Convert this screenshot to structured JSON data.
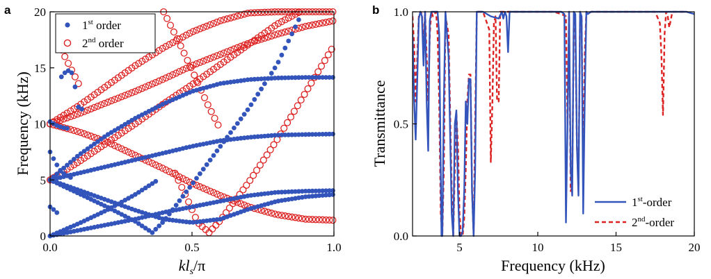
{
  "chart_data": [
    {
      "panel": "a",
      "type": "scatter",
      "xlabel_main": "kl",
      "xlabel_sub": "s",
      "xlabel_tail": "/π",
      "ylabel": "Frequency (kHz)",
      "xlim": [
        0,
        1
      ],
      "ylim": [
        0,
        20
      ],
      "xticks": [
        "0.0",
        "0.5",
        "1.0"
      ],
      "xtick_values": [
        0,
        0.5,
        1
      ],
      "yticks": [
        "0",
        "5",
        "10",
        "15",
        "20"
      ],
      "ytick_values": [
        0,
        5,
        10,
        15,
        20
      ],
      "legend": [
        {
          "pre": "1",
          "sup": "st",
          "post": " order",
          "marker": "filled-circle",
          "color": "#3355bb"
        },
        {
          "pre": "2",
          "sup": "nd",
          "post": " order",
          "marker": "open-circle",
          "color": "#dd2222"
        }
      ],
      "legend_position": "top-left",
      "branches": [
        {
          "ka": [
            0,
            0.05,
            0.1,
            0.2,
            0.3,
            0.4,
            0.5,
            0.6,
            0.7,
            0.8,
            0.9,
            1.0
          ],
          "f": [
            5,
            6.1,
            7.2,
            9.0,
            10.5,
            11.8,
            12.9,
            13.6,
            13.95,
            14.1,
            14.15,
            14.15
          ]
        },
        {
          "ka": [
            0,
            0.1,
            0.2,
            0.3,
            0.4,
            0.5,
            0.6,
            0.7,
            0.8,
            0.9,
            1.0
          ],
          "f": [
            5,
            5.6,
            6.2,
            6.8,
            7.4,
            8.0,
            8.5,
            8.8,
            9.0,
            9.05,
            9.1
          ]
        },
        {
          "ka": [
            0,
            0.1,
            0.2,
            0.3,
            0.4,
            0.5,
            0.6,
            0.7,
            0.8,
            0.9,
            1.0
          ],
          "f": [
            5,
            4.1,
            3.2,
            2.3,
            1.5,
            1.2,
            1.5,
            2.4,
            3.1,
            3.5,
            3.7
          ]
        },
        {
          "ka": [
            0,
            0.1,
            0.2,
            0.3,
            0.4,
            0.5,
            0.6,
            0.7,
            0.8,
            0.9,
            1.0
          ],
          "f": [
            0,
            0.5,
            1.0,
            1.5,
            2.1,
            2.6,
            3.1,
            3.6,
            3.9,
            4.0,
            4.05
          ]
        },
        {
          "ka": [
            0,
            0.1,
            0.2,
            0.3,
            0.36,
            0.4,
            0.5,
            0.6,
            0.7,
            0.8,
            0.88
          ],
          "f": [
            5,
            3.8,
            2.6,
            1.3,
            0.3,
            1.3,
            4.6,
            8.0,
            11.4,
            15.3,
            19.5
          ]
        },
        {
          "ka": [
            0,
            0.1,
            0.2,
            0.3,
            0.38
          ],
          "f": [
            0,
            1.1,
            2.3,
            3.7,
            5.0
          ]
        },
        {
          "ka": [
            0,
            0.02,
            0.04,
            0.08
          ],
          "f": [
            7.5,
            6.5,
            5.7,
            5.1
          ]
        },
        {
          "ka": [
            0,
            0.01,
            0.02,
            0.03
          ],
          "f": [
            2.6,
            2.4,
            2.2,
            1.9
          ]
        },
        {
          "ka": [
            0.04,
            0.06,
            0.08,
            0.1,
            0.12
          ],
          "f": [
            14.2,
            14.8,
            14.5,
            11.5,
            11.2
          ]
        },
        {
          "ka": [
            0,
            0.02,
            0.04,
            0.06
          ],
          "f": [
            10.2,
            9.9,
            9.7,
            9.6
          ]
        }
      ],
      "second_order_branches": [
        {
          "ka": [
            0,
            0.05,
            0.1,
            0.2,
            0.3,
            0.4,
            0.5,
            0.6,
            0.7,
            0.8,
            0.88
          ],
          "f": [
            5,
            5.8,
            6.6,
            8.3,
            10.0,
            11.8,
            13.5,
            15.3,
            17.1,
            18.9,
            20
          ]
        },
        {
          "ka": [
            0,
            0.1,
            0.2,
            0.3,
            0.4,
            0.5,
            0.6,
            0.7,
            0.8,
            0.9,
            1.0
          ],
          "f": [
            10,
            10.9,
            11.9,
            12.9,
            14.0,
            15.2,
            16.2,
            17.2,
            18.0,
            18.7,
            19.2
          ]
        },
        {
          "ka": [
            0,
            0.1,
            0.2,
            0.3,
            0.4,
            0.5,
            0.6,
            0.7,
            0.8,
            0.9,
            1.0
          ],
          "f": [
            10,
            11.6,
            13.4,
            15.2,
            16.8,
            18.2,
            19.2,
            19.9,
            20,
            20,
            20
          ]
        },
        {
          "ka": [
            0,
            0.1,
            0.2,
            0.3,
            0.4,
            0.5,
            0.6,
            0.7,
            0.8,
            0.9,
            1.0
          ],
          "f": [
            10,
            9.3,
            8.4,
            7.2,
            6.0,
            4.7,
            3.6,
            2.6,
            1.9,
            1.5,
            1.4
          ]
        },
        {
          "ka": [
            0.44,
            0.48,
            0.52,
            0.56,
            0.6,
            0.7,
            0.8,
            0.9,
            1.0
          ],
          "f": [
            5.6,
            3.5,
            1.2,
            0.3,
            1.4,
            4.8,
            8.6,
            12.8,
            17.0
          ]
        },
        {
          "ka": [
            0.4,
            0.45,
            0.5,
            0.55,
            0.6
          ],
          "f": [
            20,
            17.5,
            14.8,
            12.0,
            9.5
          ]
        },
        {
          "ka": [
            0.04,
            0.06,
            0.08,
            0.1
          ],
          "f": [
            16.6,
            15.6,
            14.6,
            13.6
          ]
        }
      ]
    },
    {
      "panel": "b",
      "type": "line",
      "xlabel": "Frequency (kHz)",
      "ylabel": "Transmittance",
      "xlim": [
        2,
        20
      ],
      "ylim": [
        0,
        1
      ],
      "xticks": [
        "5",
        "10",
        "15",
        "20"
      ],
      "xtick_values": [
        5,
        10,
        15,
        20
      ],
      "yticks": [
        "0.0",
        "0.5",
        "1.0"
      ],
      "ytick_values": [
        0,
        0.5,
        1
      ],
      "legend": [
        {
          "pre": "1",
          "sup": "st",
          "post": "-order",
          "style": "solid",
          "color": "#3355bb"
        },
        {
          "pre": "2",
          "sup": "nd",
          "post": "-order",
          "style": "dashed",
          "color": "#dd2222"
        }
      ],
      "legend_position": "bottom-right",
      "series": [
        {
          "style": "solid",
          "color": "#3355bb",
          "x": [
            2.0,
            2.1,
            2.2,
            2.3,
            2.4,
            2.5,
            2.6,
            2.7,
            2.8,
            2.9,
            3.0,
            3.05,
            3.1,
            3.2,
            3.4,
            3.6,
            3.7,
            3.8,
            3.85,
            3.9,
            4.0,
            4.1,
            4.3,
            4.5,
            4.6,
            4.7,
            4.8,
            4.9,
            5.0,
            5.1,
            5.2,
            5.3,
            5.4,
            5.5,
            5.6,
            5.7,
            5.8,
            5.9,
            6.0,
            6.1,
            6.2,
            6.5,
            7.0,
            7.5,
            7.7,
            7.8,
            7.9,
            8.0,
            8.1,
            8.2,
            8.4,
            8.6,
            9,
            10,
            11,
            11.5,
            11.7,
            11.8,
            11.9,
            12.0,
            12.1,
            12.2,
            12.3,
            12.4,
            12.5,
            12.6,
            12.7,
            12.8,
            12.9,
            13.0,
            13.1,
            13.2,
            13.4,
            14,
            15,
            16,
            17,
            17.5,
            18,
            18.5,
            19,
            19.5,
            20
          ],
          "y": [
            0.9,
            0.6,
            0.43,
            0.7,
            0.97,
            1.0,
            0.98,
            0.76,
            1.0,
            0.6,
            0.38,
            0.7,
            0.96,
            1.0,
            1.0,
            1.0,
            0.9,
            0.3,
            0.0,
            0.0,
            0.6,
            1.0,
            0.8,
            0.1,
            0.0,
            0.5,
            0.56,
            0.2,
            0.0,
            0.0,
            0.02,
            0.2,
            0.6,
            0.5,
            0.7,
            0.7,
            0.2,
            0.0,
            0.3,
            1.0,
            1.0,
            1.0,
            0.98,
            0.97,
            1.0,
            0.97,
            1.0,
            0.98,
            0.82,
            1.0,
            1.0,
            1.0,
            1.0,
            1.0,
            1.0,
            1.0,
            0.99,
            0.06,
            0.5,
            1.0,
            0.3,
            0.18,
            1.0,
            0.99,
            0.4,
            0.18,
            1.0,
            0.98,
            0.1,
            0.6,
            1.0,
            0.99,
            1.0,
            1.0,
            1.0,
            1.0,
            1.0,
            1.0,
            1.0,
            1.0,
            1.0,
            1.0,
            0.99
          ]
        },
        {
          "style": "dashed",
          "color": "#dd2222",
          "x": [
            2.0,
            2.1,
            2.2,
            2.3,
            2.4,
            2.5,
            2.6,
            2.7,
            2.8,
            2.9,
            3.0,
            3.1,
            3.2,
            3.3,
            3.4,
            3.5,
            3.6,
            3.7,
            3.8,
            3.9,
            4.0,
            4.1,
            4.3,
            4.5,
            4.6,
            4.7,
            4.8,
            4.9,
            5.0,
            5.1,
            5.2,
            5.3,
            5.4,
            5.5,
            5.6,
            5.7,
            5.8,
            5.9,
            6.0,
            6.1,
            6.2,
            6.5,
            6.9,
            7.0,
            7.1,
            7.2,
            7.3,
            7.4,
            7.5,
            7.6,
            7.8,
            8,
            9,
            10,
            11,
            11.5,
            11.8,
            11.9,
            12.0,
            12.1,
            12.2,
            12.3,
            12.4,
            12.5,
            12.6,
            12.7,
            12.8,
            12.9,
            13.0,
            13.1,
            13.2,
            13.4,
            14,
            15,
            16,
            17,
            17.5,
            17.8,
            17.9,
            18.0,
            18.1,
            18.2,
            18.3,
            18.4,
            18.6,
            19,
            19.5,
            20
          ],
          "y": [
            0.98,
            0.85,
            0.6,
            0.8,
            0.98,
            1.0,
            0.99,
            0.85,
            1.0,
            0.8,
            0.6,
            0.9,
            1.0,
            0.98,
            0.99,
            1.0,
            0.9,
            0.6,
            0.1,
            0.0,
            0.3,
            0.98,
            0.9,
            0.2,
            0.0,
            0.3,
            0.55,
            0.4,
            0.1,
            0.0,
            0.0,
            0.08,
            0.3,
            0.6,
            0.72,
            0.72,
            0.2,
            0.0,
            0.5,
            1.0,
            1.0,
            1.0,
            0.92,
            0.33,
            0.6,
            0.95,
            0.98,
            0.6,
            0.6,
            1.0,
            1.0,
            1.0,
            1.0,
            1.0,
            1.0,
            0.99,
            0.98,
            0.5,
            1.0,
            0.2,
            0.22,
            0.98,
            0.9,
            0.4,
            0.22,
            1.0,
            0.97,
            0.3,
            0.8,
            1.0,
            0.99,
            1.0,
            1.0,
            1.0,
            1.0,
            1.0,
            1.0,
            0.95,
            0.8,
            0.54,
            0.9,
            1.0,
            0.98,
            0.93,
            1.0,
            1.0,
            1.0,
            0.99
          ]
        }
      ]
    }
  ]
}
